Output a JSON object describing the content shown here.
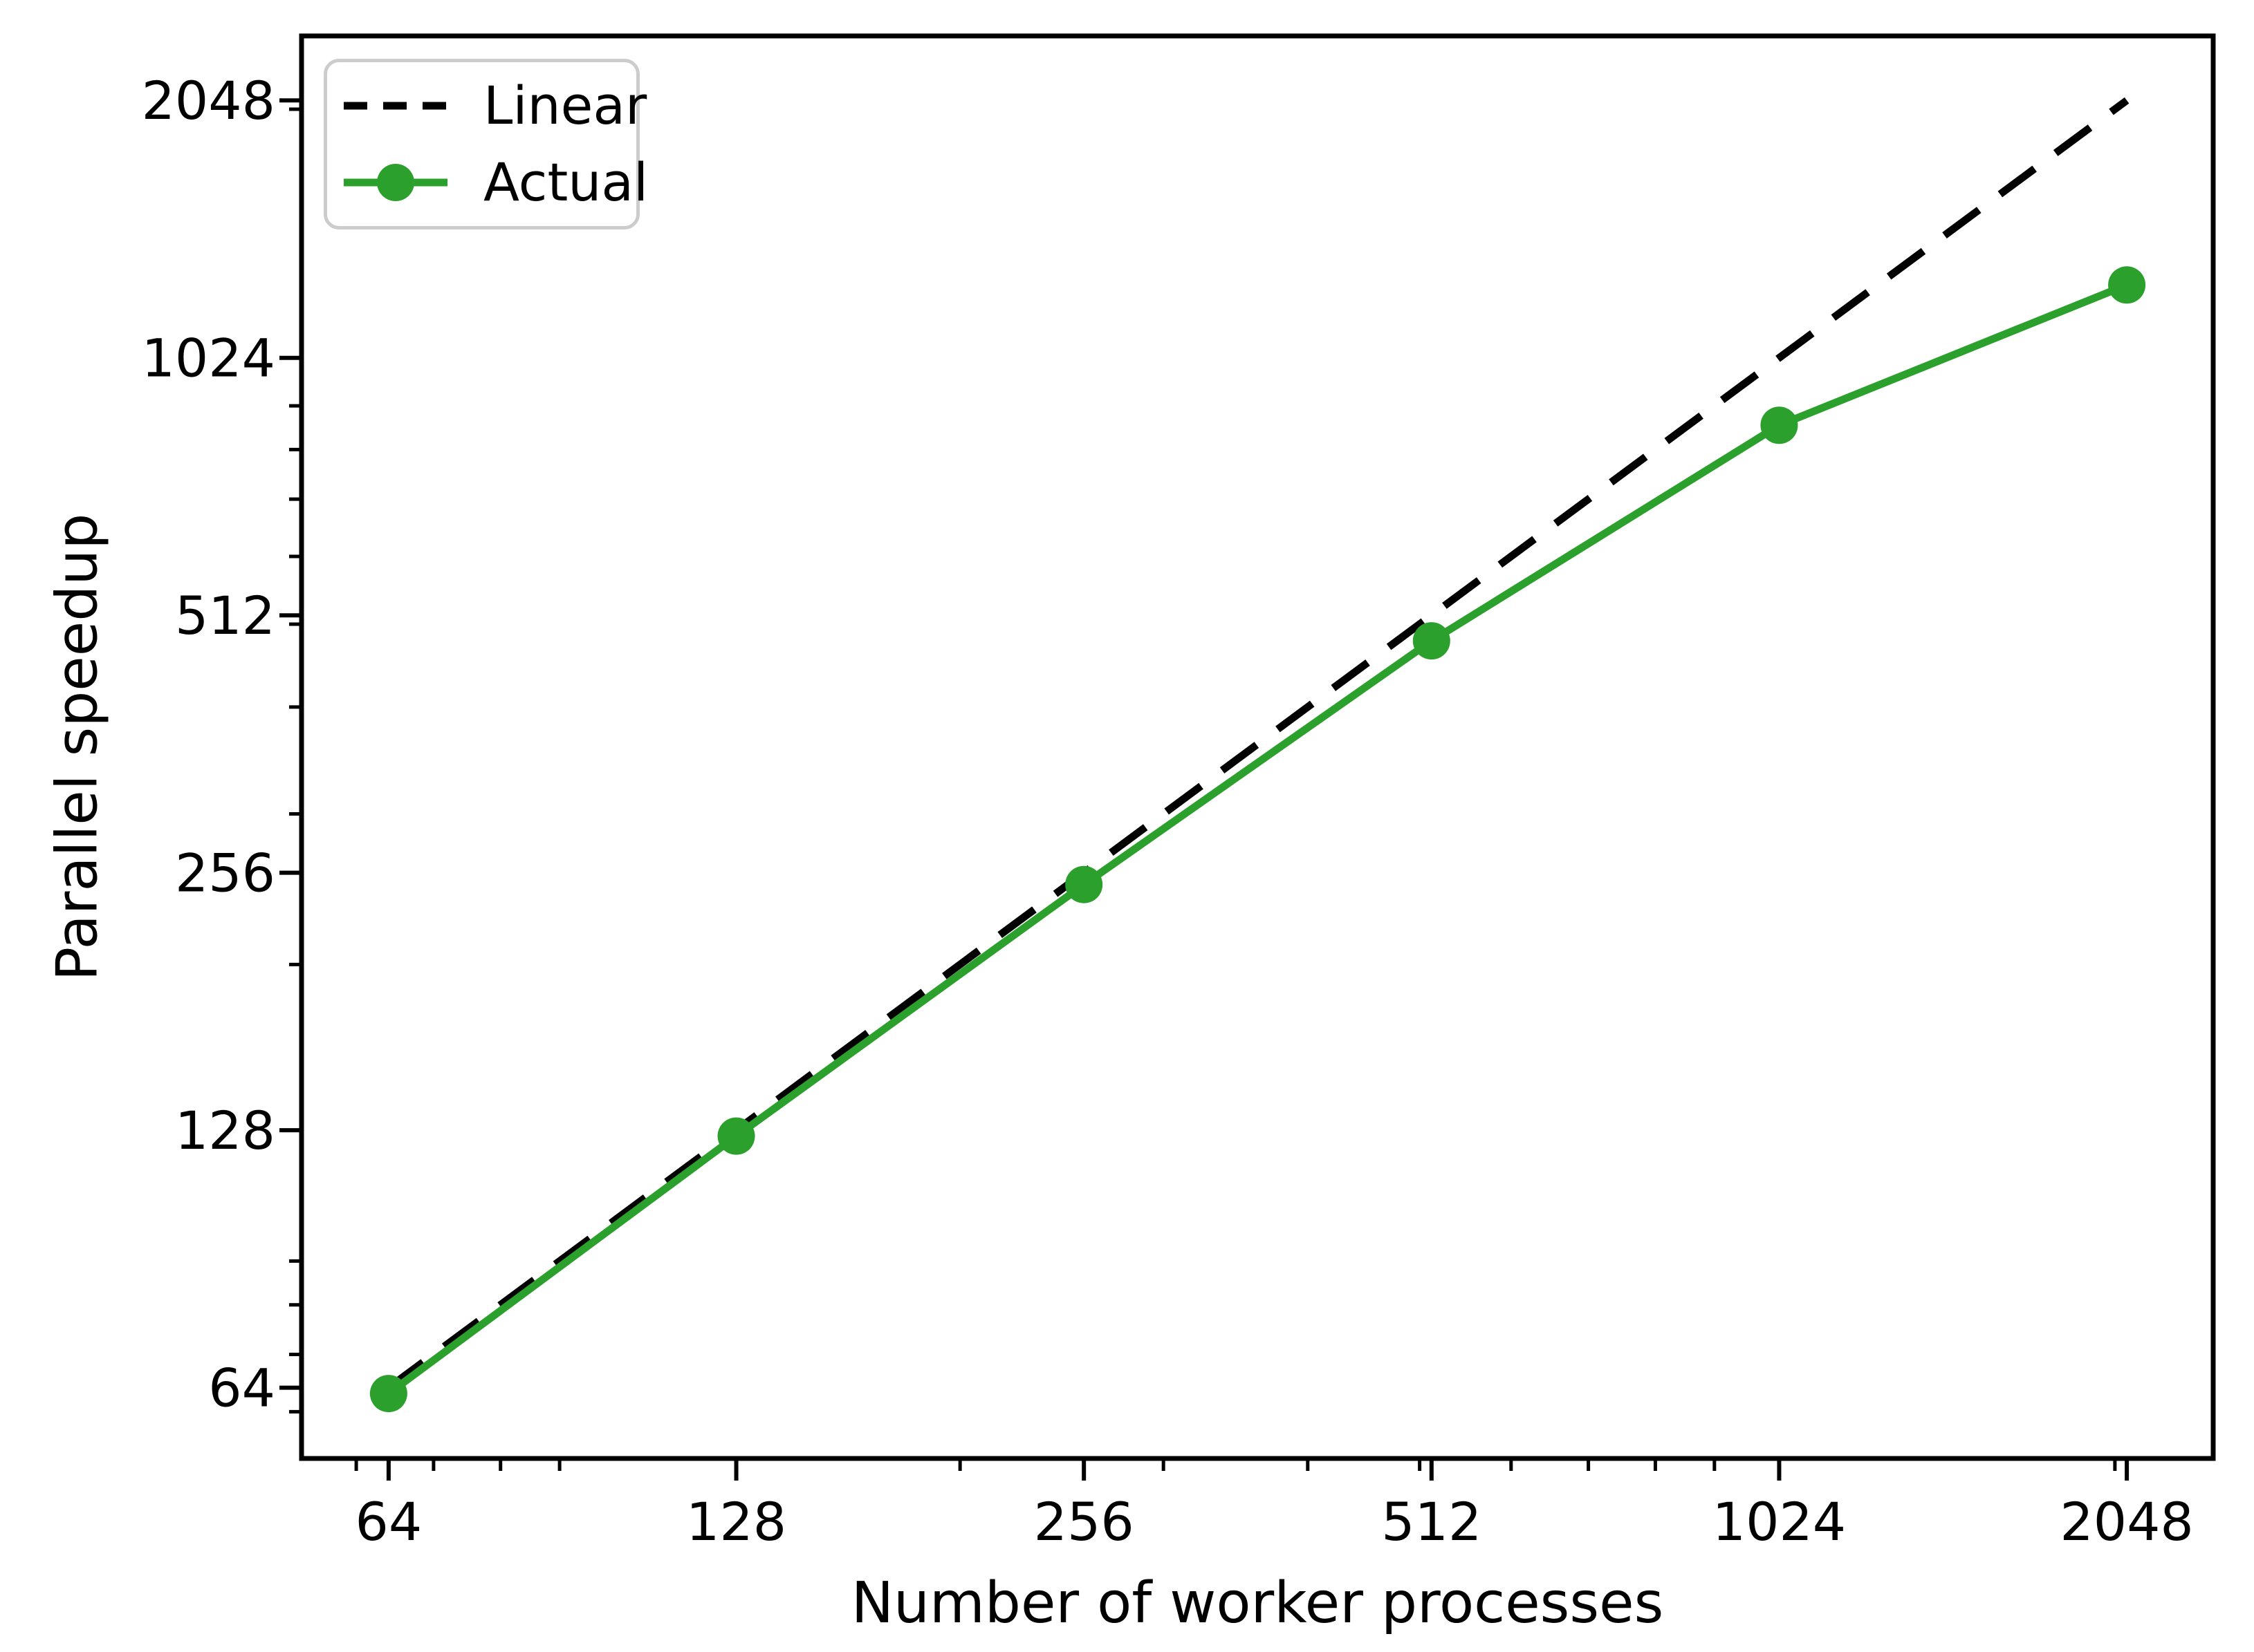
{
  "chart_data": {
    "type": "line",
    "title": "",
    "xlabel": "Number of worker processes",
    "ylabel": "Parallel speedup",
    "x_scale": "log2",
    "y_scale": "log2",
    "grid": false,
    "x": [
      64,
      128,
      256,
      512,
      1024,
      2048
    ],
    "x_ticks": [
      64,
      128,
      256,
      512,
      1024,
      2048
    ],
    "y_ticks": [
      64,
      128,
      256,
      512,
      1024,
      2048
    ],
    "x_tick_labels": [
      "64",
      "128",
      "256",
      "512",
      "1024",
      "2048"
    ],
    "y_tick_labels": [
      "64",
      "128",
      "256",
      "512",
      "1024",
      "2048"
    ],
    "minor_ticks": [
      60,
      70,
      80,
      90,
      200,
      300,
      400,
      500,
      600,
      700,
      800,
      900,
      2000
    ],
    "x_limits": [
      53.8,
      2433
    ],
    "y_limits": [
      52.9,
      2436
    ],
    "series": [
      {
        "name": "Linear",
        "values": [
          64,
          128,
          256,
          512,
          1024,
          2048
        ],
        "color": "#000000",
        "line_style": "dashed",
        "marker": "none"
      },
      {
        "name": "Actual",
        "values": [
          63,
          126,
          248,
          478,
          854,
          1246
        ],
        "color": "#2ca02c",
        "line_style": "solid",
        "marker": "circle"
      }
    ],
    "legend": {
      "location": "upper left",
      "entries": [
        "Linear",
        "Actual"
      ]
    },
    "colors": {
      "background": "#ffffff",
      "frame": "#000000",
      "legend_border": "#cccccc",
      "actual_green": "#2ca02c"
    }
  }
}
